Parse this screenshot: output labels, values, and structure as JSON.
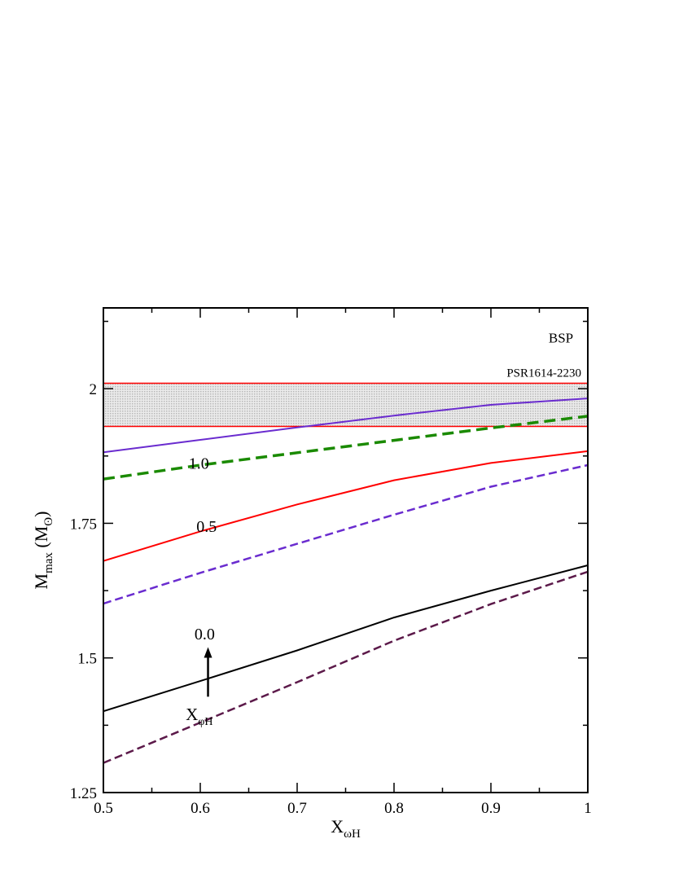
{
  "chart_data": {
    "type": "line",
    "xlabel": {
      "main": "X",
      "sub": "ωH"
    },
    "ylabel": {
      "main": "M",
      "sub": "max",
      "unit_open": " (M",
      "unit_sub": "ʘ",
      "unit_close": ")"
    },
    "xlim": [
      0.5,
      1.0
    ],
    "ylim": [
      1.25,
      2.15
    ],
    "x_ticks": [
      {
        "value": 0.5,
        "label": "0.5"
      },
      {
        "value": 0.6,
        "label": "0.6"
      },
      {
        "value": 0.7,
        "label": "0.7"
      },
      {
        "value": 0.8,
        "label": "0.8"
      },
      {
        "value": 0.9,
        "label": "0.9"
      },
      {
        "value": 1.0,
        "label": "1"
      }
    ],
    "y_ticks": [
      {
        "value": 1.25,
        "label": "1.25"
      },
      {
        "value": 1.5,
        "label": "1.5"
      },
      {
        "value": 1.75,
        "label": "1.75"
      },
      {
        "value": 2.0,
        "label": "2"
      }
    ],
    "band": {
      "y_low": 1.93,
      "y_high": 2.01,
      "label": "PSR1614-2230",
      "edge_color": "#ff0000",
      "fill_color": "#d9d9d9"
    },
    "series": [
      {
        "style": "solid",
        "color": "#6a2ccf",
        "width": 2,
        "x": [
          0.5,
          0.6,
          0.7,
          0.8,
          0.9,
          1.0
        ],
        "y": [
          1.882,
          1.905,
          1.928,
          1.95,
          1.97,
          1.982
        ]
      },
      {
        "style": "dashed",
        "color": "#1a8a00",
        "width": 3.5,
        "x": [
          0.5,
          0.6,
          0.7,
          0.8,
          0.9,
          1.0
        ],
        "y": [
          1.832,
          1.858,
          1.881,
          1.904,
          1.927,
          1.949
        ]
      },
      {
        "style": "solid",
        "color": "#ff0000",
        "width": 2,
        "x": [
          0.5,
          0.6,
          0.7,
          0.8,
          0.9,
          1.0
        ],
        "y": [
          1.68,
          1.735,
          1.785,
          1.83,
          1.862,
          1.884
        ]
      },
      {
        "style": "dashed",
        "color": "#6a2ccf",
        "width": 2.5,
        "x": [
          0.5,
          0.6,
          0.7,
          0.8,
          0.9,
          1.0
        ],
        "y": [
          1.601,
          1.658,
          1.712,
          1.766,
          1.818,
          1.858
        ]
      },
      {
        "style": "solid",
        "color": "#000000",
        "width": 2,
        "x": [
          0.5,
          0.6,
          0.7,
          0.8,
          0.9,
          1.0
        ],
        "y": [
          1.401,
          1.457,
          1.514,
          1.575,
          1.625,
          1.672
        ]
      },
      {
        "style": "dashed",
        "color": "#5c1a4a",
        "width": 2.5,
        "x": [
          0.5,
          0.6,
          0.7,
          0.8,
          0.9,
          1.0
        ],
        "y": [
          1.305,
          1.38,
          1.455,
          1.532,
          1.6,
          1.66
        ]
      }
    ],
    "annotations": {
      "model_label": {
        "text": "BSP",
        "x": 0.985,
        "y": 2.095
      },
      "curve_labels": [
        {
          "text": "1.0",
          "x": 0.588,
          "y": 1.862
        },
        {
          "text": "0.5",
          "x": 0.596,
          "y": 1.745
        },
        {
          "text": "0.0",
          "x": 0.594,
          "y": 1.545
        }
      ],
      "arrow": {
        "x": 0.608,
        "y_start": 1.428,
        "y_end": 1.52
      },
      "arrow_label": {
        "main": "X",
        "sub": "φH",
        "x": 0.59,
        "y": 1.385
      }
    },
    "grid": false,
    "legend": "none"
  }
}
